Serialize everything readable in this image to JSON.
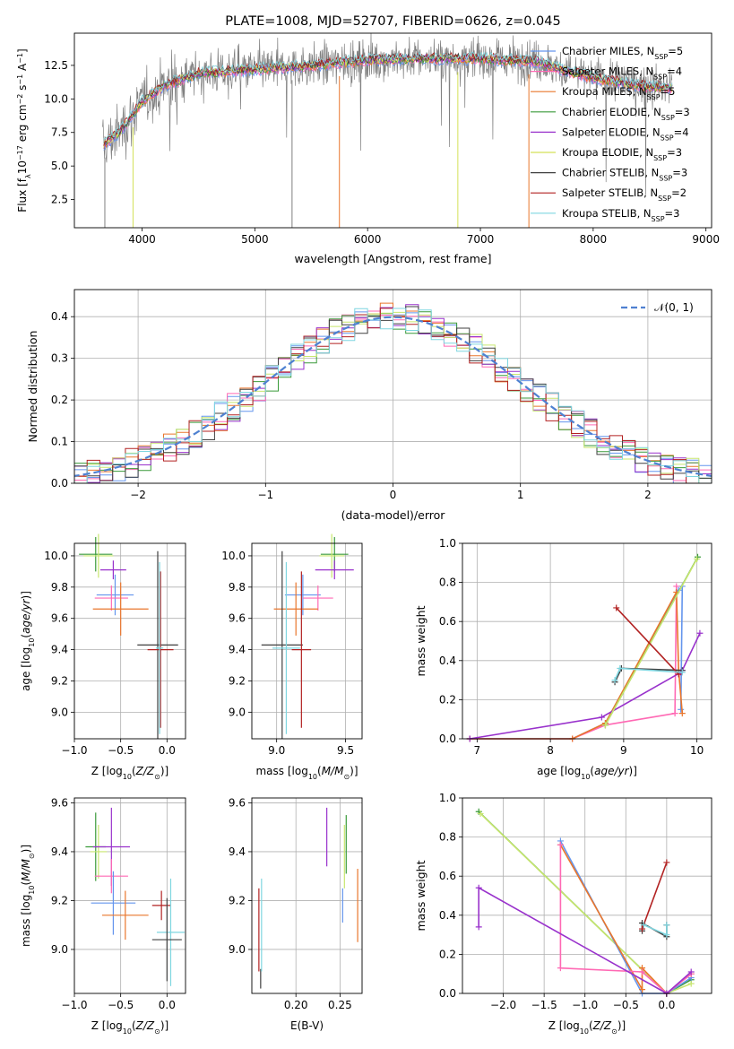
{
  "chart_data": [
    {
      "id": "spectrum",
      "type": "line",
      "title": "PLATE=1008, MJD=52707, FIBERID=0626, z=0.045",
      "xlabel": "wavelength [Angstrom, rest frame]",
      "ylabel": "Flux [f_λ 10^-17 erg cm^-2 s^-1 A^-1]",
      "xlim": [
        3400,
        9050
      ],
      "ylim": [
        0.4,
        14.9
      ],
      "xticks": [
        4000,
        5000,
        6000,
        7000,
        8000,
        9000
      ],
      "yticks": [
        2.5,
        5.0,
        7.5,
        10.0,
        12.5
      ],
      "grid": false,
      "legend_position": "right",
      "data_line": {
        "color": "#808080",
        "x_range": [
          3650,
          8700
        ]
      },
      "continuum": {
        "x": [
          3650,
          3800,
          4000,
          4200,
          4500,
          5000,
          5500,
          6000,
          6500,
          7000,
          7500,
          7800,
          8100,
          8400,
          8700
        ],
        "y": [
          6.5,
          7.5,
          9.8,
          11.0,
          11.9,
          12.2,
          12.5,
          12.9,
          13.0,
          13.0,
          12.8,
          12.0,
          11.4,
          11.0,
          10.8
        ]
      },
      "series": [
        {
          "name": "Chabrier MILES, N_SSP=5",
          "color": "#6495ed"
        },
        {
          "name": "Salpeter MILES, N_SSP=4",
          "color": "#ff69b4"
        },
        {
          "name": "Kroupa MILES, N_SSP=5",
          "color": "#e9762c"
        },
        {
          "name": "Chabrier ELODIE, N_SSP=3",
          "color": "#3a9a3a"
        },
        {
          "name": "Salpeter ELODIE, N_SSP=4",
          "color": "#9932cc"
        },
        {
          "name": "Kroupa ELODIE, N_SSP=3",
          "color": "#d4e157"
        },
        {
          "name": "Chabrier STELIB, N_SSP=3",
          "color": "#404040"
        },
        {
          "name": "Salpeter STELIB, N_SSP=2",
          "color": "#b22222"
        },
        {
          "name": "Kroupa STELIB, N_SSP=3",
          "color": "#7fd6e0"
        }
      ]
    },
    {
      "id": "residuals",
      "type": "line",
      "xlabel": "(data-model)/error",
      "ylabel": "Normed distribution",
      "xlim": [
        -2.5,
        2.5
      ],
      "ylim": [
        0,
        0.465
      ],
      "xticks": [
        -2,
        -1,
        0,
        1,
        2
      ],
      "yticks": [
        0.0,
        0.1,
        0.2,
        0.3,
        0.4
      ],
      "grid": true,
      "legend_position": "top-right",
      "gaussian": {
        "label": "𝒩(0, 1)",
        "color": "#4f81d1"
      },
      "histogram_colors": [
        "#6495ed",
        "#ff69b4",
        "#e9762c",
        "#3a9a3a",
        "#9932cc",
        "#c8e66e",
        "#404040",
        "#b22222",
        "#7fd6e0"
      ]
    },
    {
      "id": "age_vs_z",
      "type": "scatter",
      "xlabel": "Z [log10(Z/Z⊙)]",
      "ylabel": "age  [log10(age/yr)]",
      "xlim": [
        -1.0,
        0.2
      ],
      "ylim": [
        8.83,
        10.08
      ],
      "xticks": [
        -1.0,
        -0.5,
        0.0
      ],
      "yticks": [
        9.0,
        9.2,
        9.4,
        9.6,
        9.8,
        10.0
      ],
      "grid": true,
      "points": [
        {
          "color": "#3a9a3a",
          "x": -0.77,
          "xerr": 0.18,
          "y": 10.01,
          "yerr": 0.11
        },
        {
          "color": "#c8e66e",
          "x": -0.74,
          "xerr": 0.16,
          "y": 10.0,
          "yerr": 0.14
        },
        {
          "color": "#9932cc",
          "x": -0.58,
          "xerr": 0.14,
          "y": 9.91,
          "yerr": 0.06
        },
        {
          "color": "#6495ed",
          "x": -0.56,
          "xerr": 0.2,
          "y": 9.75,
          "yerr": 0.13
        },
        {
          "color": "#ff69b4",
          "x": -0.6,
          "xerr": 0.18,
          "y": 9.73,
          "yerr": 0.08
        },
        {
          "color": "#e9762c",
          "x": -0.5,
          "xerr": 0.3,
          "y": 9.66,
          "yerr": 0.17
        },
        {
          "color": "#404040",
          "x": -0.1,
          "xerr": 0.22,
          "y": 9.43,
          "yerr": 0.6
        },
        {
          "color": "#b22222",
          "x": -0.07,
          "xerr": 0.14,
          "y": 9.4,
          "yerr": 0.5
        },
        {
          "color": "#7fd6e0",
          "x": -0.08,
          "xerr": 0.04,
          "y": 9.41,
          "yerr": 0.55
        }
      ]
    },
    {
      "id": "age_vs_mass",
      "type": "scatter",
      "xlabel": "mass [log10(M/M⊙)]",
      "ylabel": "",
      "xlim": [
        8.82,
        9.62
      ],
      "ylim": [
        8.83,
        10.08
      ],
      "xticks": [
        9.0,
        9.5
      ],
      "yticks": [
        9.0,
        9.2,
        9.4,
        9.6,
        9.8,
        10.0
      ],
      "grid": true,
      "points": [
        {
          "color": "#3a9a3a",
          "x": 9.42,
          "xerr": 0.1,
          "y": 10.01,
          "yerr": 0.11
        },
        {
          "color": "#c8e66e",
          "x": 9.4,
          "xerr": 0.09,
          "y": 10.0,
          "yerr": 0.14
        },
        {
          "color": "#9932cc",
          "x": 9.42,
          "xerr": 0.14,
          "y": 9.91,
          "yerr": 0.06
        },
        {
          "color": "#6495ed",
          "x": 9.19,
          "xerr": 0.13,
          "y": 9.75,
          "yerr": 0.13
        },
        {
          "color": "#ff69b4",
          "x": 9.3,
          "xerr": 0.11,
          "y": 9.73,
          "yerr": 0.08
        },
        {
          "color": "#e9762c",
          "x": 9.14,
          "xerr": 0.16,
          "y": 9.66,
          "yerr": 0.17
        },
        {
          "color": "#404040",
          "x": 9.04,
          "xerr": 0.15,
          "y": 9.43,
          "yerr": 0.6
        },
        {
          "color": "#b22222",
          "x": 9.18,
          "xerr": 0.07,
          "y": 9.4,
          "yerr": 0.5
        },
        {
          "color": "#7fd6e0",
          "x": 9.07,
          "xerr": 0.1,
          "y": 9.41,
          "yerr": 0.55
        }
      ]
    },
    {
      "id": "weight_vs_age",
      "type": "line",
      "xlabel": "age  [log10(age/yr)]",
      "ylabel": "mass weight",
      "xlim": [
        6.8,
        10.2
      ],
      "ylim": [
        0,
        1.0
      ],
      "xticks": [
        7,
        8,
        9,
        10
      ],
      "yticks": [
        0.0,
        0.2,
        0.4,
        0.6,
        0.8,
        1.0
      ],
      "grid": true,
      "series": [
        {
          "color": "#6495ed",
          "x": [
            6.9,
            8.3,
            8.75,
            9.75,
            9.8,
            9.78
          ],
          "y": [
            0.0,
            0.0,
            0.08,
            0.76,
            0.78,
            0.15
          ]
        },
        {
          "color": "#ff69b4",
          "x": [
            6.9,
            8.3,
            8.75,
            9.7,
            9.72
          ],
          "y": [
            0.0,
            0.0,
            0.07,
            0.13,
            0.78
          ]
        },
        {
          "color": "#e9762c",
          "x": [
            6.9,
            8.3,
            8.75,
            9.72,
            9.75,
            9.8
          ],
          "y": [
            0.0,
            0.0,
            0.08,
            0.75,
            0.35,
            0.13
          ]
        },
        {
          "color": "#3a9a3a",
          "x": [
            8.75,
            10.01
          ],
          "y": [
            0.07,
            0.93
          ]
        },
        {
          "color": "#9932cc",
          "x": [
            6.9,
            8.7,
            9.78,
            9.8,
            10.04
          ],
          "y": [
            0.0,
            0.11,
            0.34,
            0.35,
            0.54
          ]
        },
        {
          "color": "#c8e66e",
          "x": [
            8.75,
            10.0
          ],
          "y": [
            0.07,
            0.92
          ]
        },
        {
          "color": "#404040",
          "x": [
            8.88,
            8.97,
            9.8
          ],
          "y": [
            0.29,
            0.36,
            0.35
          ]
        },
        {
          "color": "#b22222",
          "x": [
            8.9,
            9.75
          ],
          "y": [
            0.67,
            0.33
          ]
        },
        {
          "color": "#7fd6e0",
          "x": [
            8.88,
            8.95,
            9.8
          ],
          "y": [
            0.3,
            0.36,
            0.34
          ]
        }
      ]
    },
    {
      "id": "mass_vs_z",
      "type": "scatter",
      "xlabel": "Z [log10(Z/Z⊙)]",
      "ylabel": "mass [log10(M/M⊙)]",
      "xlim": [
        -1.0,
        0.2
      ],
      "ylim": [
        8.82,
        9.62
      ],
      "xticks": [
        -1.0,
        -0.5,
        0.0
      ],
      "yticks": [
        9.0,
        9.2,
        9.4,
        9.6
      ],
      "grid": true,
      "points": [
        {
          "color": "#3a9a3a",
          "x": -0.77,
          "xerr": 0.11,
          "y": 9.42,
          "yerr": 0.14
        },
        {
          "color": "#c8e66e",
          "x": -0.74,
          "xerr": 0.09,
          "y": 9.4,
          "yerr": 0.11
        },
        {
          "color": "#9932cc",
          "x": -0.6,
          "xerr": 0.2,
          "y": 9.42,
          "yerr": 0.16
        },
        {
          "color": "#ff69b4",
          "x": -0.6,
          "xerr": 0.18,
          "y": 9.3,
          "yerr": 0.07
        },
        {
          "color": "#6495ed",
          "x": -0.58,
          "xerr": 0.24,
          "y": 9.19,
          "yerr": 0.13
        },
        {
          "color": "#e9762c",
          "x": -0.45,
          "xerr": 0.25,
          "y": 9.14,
          "yerr": 0.1
        },
        {
          "color": "#b22222",
          "x": -0.06,
          "xerr": 0.1,
          "y": 9.18,
          "yerr": 0.06
        },
        {
          "color": "#7fd6e0",
          "x": 0.04,
          "xerr": 0.15,
          "y": 9.07,
          "yerr": 0.22
        },
        {
          "color": "#404040",
          "x": 0.0,
          "xerr": 0.16,
          "y": 9.04,
          "yerr": 0.17
        }
      ]
    },
    {
      "id": "mass_vs_ebv",
      "type": "scatter",
      "xlabel": "E(B-V)",
      "ylabel": "",
      "xlim": [
        0.15,
        0.275
      ],
      "ylim": [
        8.82,
        9.62
      ],
      "xticks": [
        0.2,
        0.25
      ],
      "yticks": [
        9.0,
        9.2,
        9.4,
        9.6
      ],
      "grid": true,
      "points": [
        {
          "color": "#b22222",
          "x": 0.158,
          "y": 9.08,
          "yerr": 0.17
        },
        {
          "color": "#404040",
          "x": 0.16,
          "y": 8.88,
          "yerr": 0.04
        },
        {
          "color": "#7fd6e0",
          "x": 0.161,
          "y": 9.1,
          "yerr": 0.19
        },
        {
          "color": "#9932cc",
          "x": 0.235,
          "y": 9.46,
          "yerr": 0.12
        },
        {
          "color": "#6495ed",
          "x": 0.253,
          "y": 9.18,
          "yerr": 0.07
        },
        {
          "color": "#c8e66e",
          "x": 0.255,
          "y": 9.38,
          "yerr": 0.13
        },
        {
          "color": "#3a9a3a",
          "x": 0.257,
          "y": 9.43,
          "yerr": 0.12
        },
        {
          "color": "#e9762c",
          "x": 0.27,
          "y": 9.18,
          "yerr": 0.15
        }
      ]
    },
    {
      "id": "weight_vs_z",
      "type": "line",
      "xlabel": "Z [log10(Z/Z⊙)]",
      "ylabel": "mass weight",
      "xlim": [
        -2.5,
        0.55
      ],
      "ylim": [
        0,
        1.0
      ],
      "xticks": [
        -2.0,
        -1.5,
        -1.0,
        -0.5,
        0.0
      ],
      "yticks": [
        0.0,
        0.2,
        0.4,
        0.6,
        0.8,
        1.0
      ],
      "grid": true,
      "series": [
        {
          "color": "#3a9a3a",
          "x": [
            -2.3,
            0.0,
            0.3
          ],
          "y": [
            0.93,
            0.0,
            0.07
          ]
        },
        {
          "color": "#c8e66e",
          "x": [
            -2.28,
            0.0,
            0.3
          ],
          "y": [
            0.92,
            0.0,
            0.05
          ]
        },
        {
          "color": "#6495ed",
          "x": [
            -1.3,
            -0.3,
            0.0,
            0.3
          ],
          "y": [
            0.78,
            0.0,
            0.0,
            0.08
          ]
        },
        {
          "color": "#e9762c",
          "x": [
            -1.3,
            -0.3,
            -0.3,
            0.0,
            0.3
          ],
          "y": [
            0.76,
            0.02,
            0.13,
            0.0,
            0.1
          ]
        },
        {
          "color": "#ff69b4",
          "x": [
            -1.3,
            -1.3,
            -0.3,
            0.0,
            0.3
          ],
          "y": [
            0.76,
            0.13,
            0.11,
            0.0,
            0.1
          ]
        },
        {
          "color": "#9932cc",
          "x": [
            -2.3,
            -2.3,
            0.0,
            0.3
          ],
          "y": [
            0.34,
            0.54,
            0.0,
            0.11
          ]
        },
        {
          "color": "#404040",
          "x": [
            -0.3,
            -0.3,
            0.0,
            0.0
          ],
          "y": [
            0.32,
            0.36,
            0.29,
            0.35
          ]
        },
        {
          "color": "#b22222",
          "x": [
            -0.3,
            0.0
          ],
          "y": [
            0.33,
            0.67
          ]
        },
        {
          "color": "#7fd6e0",
          "x": [
            -0.28,
            0.0,
            0.0
          ],
          "y": [
            0.35,
            0.3,
            0.35
          ]
        }
      ]
    }
  ]
}
